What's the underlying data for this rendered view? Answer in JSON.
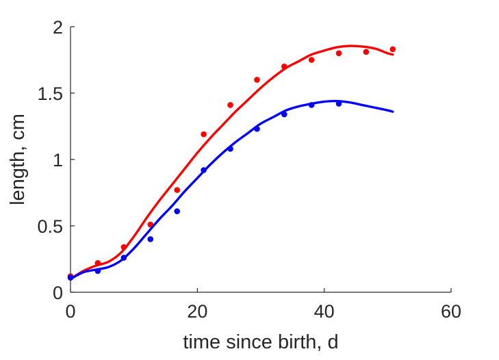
{
  "chart_data": {
    "type": "scatter",
    "title": "",
    "xlabel": "time since birth, d",
    "ylabel": "length, cm",
    "xlim": [
      0,
      60
    ],
    "ylim": [
      0,
      2
    ],
    "xticks": [
      {
        "value": 0,
        "label": "0"
      },
      {
        "value": 20,
        "label": "20"
      },
      {
        "value": 40,
        "label": "40"
      },
      {
        "value": 60,
        "label": "60"
      }
    ],
    "yticks": [
      {
        "value": 0,
        "label": "0"
      },
      {
        "value": 0.5,
        "label": "0.5"
      },
      {
        "value": 1,
        "label": "1"
      },
      {
        "value": 1.5,
        "label": "1.5"
      },
      {
        "value": 2,
        "label": "2"
      }
    ],
    "grid": false,
    "legend": "none",
    "series": [
      {
        "color": "#ff0000",
        "points": [
          {
            "x": 0,
            "y": 0.12
          },
          {
            "x": 4.3,
            "y": 0.22
          },
          {
            "x": 8.4,
            "y": 0.34
          },
          {
            "x": 12.6,
            "y": 0.51
          },
          {
            "x": 16.8,
            "y": 0.77
          },
          {
            "x": 21,
            "y": 1.19
          },
          {
            "x": 25.2,
            "y": 1.41
          },
          {
            "x": 29.4,
            "y": 1.6
          },
          {
            "x": 33.7,
            "y": 1.7
          },
          {
            "x": 38,
            "y": 1.75
          },
          {
            "x": 42.3,
            "y": 1.8
          },
          {
            "x": 46.6,
            "y": 1.81
          },
          {
            "x": 50.8,
            "y": 1.83
          }
        ],
        "curve": [
          {
            "x": 0,
            "y": 0.1
          },
          {
            "x": 2,
            "y": 0.16
          },
          {
            "x": 4,
            "y": 0.2
          },
          {
            "x": 6,
            "y": 0.23
          },
          {
            "x": 8,
            "y": 0.3
          },
          {
            "x": 10,
            "y": 0.42
          },
          {
            "x": 12,
            "y": 0.56
          },
          {
            "x": 14,
            "y": 0.69
          },
          {
            "x": 16,
            "y": 0.81
          },
          {
            "x": 18,
            "y": 0.93
          },
          {
            "x": 20,
            "y": 1.05
          },
          {
            "x": 22,
            "y": 1.16
          },
          {
            "x": 24,
            "y": 1.26
          },
          {
            "x": 26,
            "y": 1.36
          },
          {
            "x": 28,
            "y": 1.45
          },
          {
            "x": 30,
            "y": 1.54
          },
          {
            "x": 32,
            "y": 1.62
          },
          {
            "x": 34,
            "y": 1.69
          },
          {
            "x": 36,
            "y": 1.74
          },
          {
            "x": 38,
            "y": 1.79
          },
          {
            "x": 40,
            "y": 1.82
          },
          {
            "x": 42,
            "y": 1.845
          },
          {
            "x": 44,
            "y": 1.855
          },
          {
            "x": 46,
            "y": 1.85
          },
          {
            "x": 48,
            "y": 1.835
          },
          {
            "x": 50,
            "y": 1.8
          },
          {
            "x": 50.8,
            "y": 1.79
          }
        ]
      },
      {
        "color": "#0000ff",
        "points": [
          {
            "x": 0,
            "y": 0.11
          },
          {
            "x": 4.3,
            "y": 0.16
          },
          {
            "x": 8.4,
            "y": 0.26
          },
          {
            "x": 12.6,
            "y": 0.4
          },
          {
            "x": 16.8,
            "y": 0.61
          },
          {
            "x": 21,
            "y": 0.92
          },
          {
            "x": 25.2,
            "y": 1.08
          },
          {
            "x": 29.4,
            "y": 1.23
          },
          {
            "x": 33.7,
            "y": 1.34
          },
          {
            "x": 38,
            "y": 1.41
          },
          {
            "x": 42.3,
            "y": 1.42
          }
        ],
        "curve": [
          {
            "x": 0,
            "y": 0.1
          },
          {
            "x": 2,
            "y": 0.15
          },
          {
            "x": 4,
            "y": 0.17
          },
          {
            "x": 6,
            "y": 0.19
          },
          {
            "x": 8,
            "y": 0.24
          },
          {
            "x": 10,
            "y": 0.33
          },
          {
            "x": 12,
            "y": 0.44
          },
          {
            "x": 14,
            "y": 0.55
          },
          {
            "x": 16,
            "y": 0.65
          },
          {
            "x": 18,
            "y": 0.76
          },
          {
            "x": 20,
            "y": 0.86
          },
          {
            "x": 22,
            "y": 0.96
          },
          {
            "x": 24,
            "y": 1.05
          },
          {
            "x": 26,
            "y": 1.13
          },
          {
            "x": 28,
            "y": 1.2
          },
          {
            "x": 30,
            "y": 1.27
          },
          {
            "x": 32,
            "y": 1.32
          },
          {
            "x": 34,
            "y": 1.37
          },
          {
            "x": 36,
            "y": 1.4
          },
          {
            "x": 38,
            "y": 1.42
          },
          {
            "x": 40,
            "y": 1.435
          },
          {
            "x": 42,
            "y": 1.44
          },
          {
            "x": 44,
            "y": 1.43
          },
          {
            "x": 46,
            "y": 1.41
          },
          {
            "x": 48,
            "y": 1.39
          },
          {
            "x": 50,
            "y": 1.37
          },
          {
            "x": 50.8,
            "y": 1.36
          }
        ]
      }
    ]
  }
}
